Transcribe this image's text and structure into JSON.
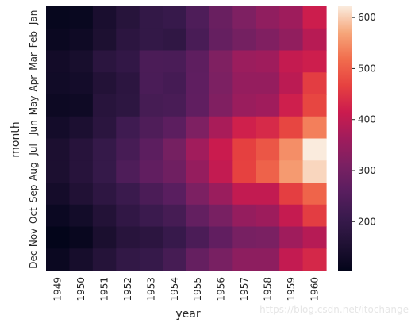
{
  "chart_data": {
    "type": "heatmap",
    "xlabel": "year",
    "ylabel": "month",
    "x_categories": [
      "1949",
      "1950",
      "1951",
      "1952",
      "1953",
      "1954",
      "1955",
      "1956",
      "1957",
      "1958",
      "1959",
      "1960"
    ],
    "y_categories": [
      "Jan",
      "Feb",
      "Mar",
      "Apr",
      "May",
      "Jun",
      "Jul",
      "Aug",
      "Sep",
      "Oct",
      "Nov",
      "Dec"
    ],
    "y_tick_labels": [
      "Jan",
      "Feb",
      "Mar",
      "Apr",
      "May",
      "Jun",
      "Jul",
      "Aug",
      "Sep",
      "Oct",
      "Nov",
      "Dec"
    ],
    "values": [
      [
        112,
        115,
        145,
        171,
        196,
        204,
        242,
        284,
        315,
        340,
        360,
        417
      ],
      [
        118,
        126,
        150,
        180,
        196,
        188,
        233,
        277,
        301,
        318,
        342,
        391
      ],
      [
        132,
        141,
        178,
        193,
        236,
        235,
        267,
        317,
        356,
        362,
        406,
        419
      ],
      [
        129,
        135,
        163,
        181,
        235,
        227,
        269,
        313,
        348,
        348,
        396,
        461
      ],
      [
        121,
        125,
        172,
        183,
        229,
        234,
        270,
        318,
        355,
        363,
        420,
        472
      ],
      [
        135,
        149,
        178,
        218,
        243,
        264,
        315,
        374,
        422,
        435,
        472,
        535
      ],
      [
        148,
        170,
        199,
        230,
        264,
        302,
        364,
        413,
        465,
        491,
        548,
        622
      ],
      [
        148,
        170,
        199,
        242,
        272,
        293,
        347,
        405,
        467,
        505,
        559,
        606
      ],
      [
        136,
        158,
        184,
        209,
        237,
        259,
        312,
        355,
        404,
        404,
        463,
        508
      ],
      [
        119,
        133,
        162,
        191,
        211,
        229,
        274,
        306,
        347,
        359,
        407,
        461
      ],
      [
        104,
        114,
        146,
        172,
        180,
        203,
        237,
        271,
        305,
        310,
        362,
        390
      ],
      [
        118,
        140,
        166,
        194,
        201,
        229,
        278,
        306,
        336,
        337,
        405,
        432
      ]
    ],
    "colorbar": {
      "ticks": [
        200,
        300,
        400,
        500,
        600
      ],
      "range": [
        104,
        622
      ]
    },
    "colormap": "rocket",
    "grid": false
  },
  "watermark": "https://blog.csdn.net/itochange"
}
